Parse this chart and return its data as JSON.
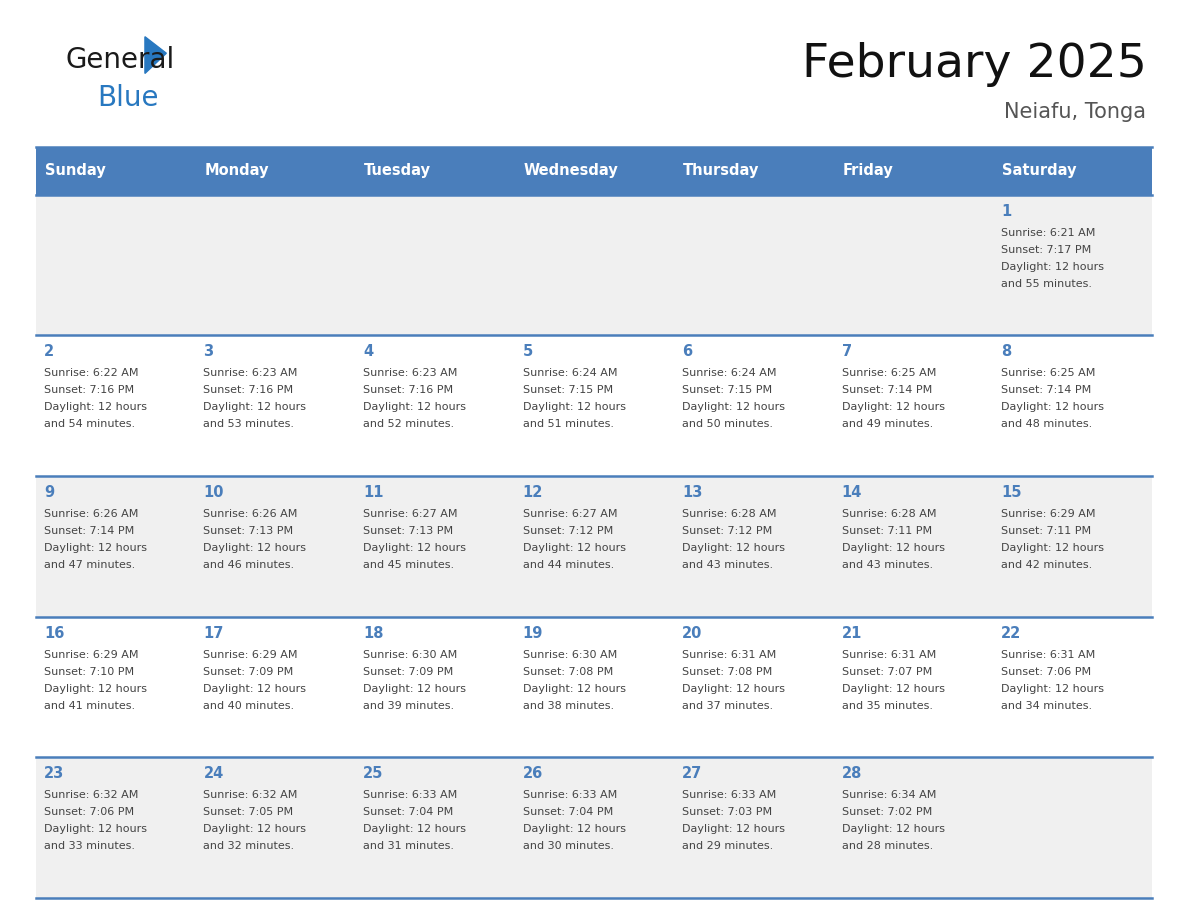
{
  "title": "February 2025",
  "subtitle": "Neiafu, Tonga",
  "header_bg_color": "#4a7ebb",
  "header_text_color": "#FFFFFF",
  "cell_bg_odd": "#f0f0f0",
  "cell_bg_even": "#ffffff",
  "day_number_color": "#4a7ebb",
  "text_color": "#444444",
  "border_color": "#4a7ebb",
  "logo_text_color": "#1a1a1a",
  "logo_blue_color": "#2878c0",
  "days_of_week": [
    "Sunday",
    "Monday",
    "Tuesday",
    "Wednesday",
    "Thursday",
    "Friday",
    "Saturday"
  ],
  "weeks": [
    [
      {
        "day": null,
        "sunrise": null,
        "sunset": null,
        "daylight_line1": null,
        "daylight_line2": null
      },
      {
        "day": null,
        "sunrise": null,
        "sunset": null,
        "daylight_line1": null,
        "daylight_line2": null
      },
      {
        "day": null,
        "sunrise": null,
        "sunset": null,
        "daylight_line1": null,
        "daylight_line2": null
      },
      {
        "day": null,
        "sunrise": null,
        "sunset": null,
        "daylight_line1": null,
        "daylight_line2": null
      },
      {
        "day": null,
        "sunrise": null,
        "sunset": null,
        "daylight_line1": null,
        "daylight_line2": null
      },
      {
        "day": null,
        "sunrise": null,
        "sunset": null,
        "daylight_line1": null,
        "daylight_line2": null
      },
      {
        "day": "1",
        "sunrise": "Sunrise: 6:21 AM",
        "sunset": "Sunset: 7:17 PM",
        "daylight_line1": "Daylight: 12 hours",
        "daylight_line2": "and 55 minutes."
      }
    ],
    [
      {
        "day": "2",
        "sunrise": "Sunrise: 6:22 AM",
        "sunset": "Sunset: 7:16 PM",
        "daylight_line1": "Daylight: 12 hours",
        "daylight_line2": "and 54 minutes."
      },
      {
        "day": "3",
        "sunrise": "Sunrise: 6:23 AM",
        "sunset": "Sunset: 7:16 PM",
        "daylight_line1": "Daylight: 12 hours",
        "daylight_line2": "and 53 minutes."
      },
      {
        "day": "4",
        "sunrise": "Sunrise: 6:23 AM",
        "sunset": "Sunset: 7:16 PM",
        "daylight_line1": "Daylight: 12 hours",
        "daylight_line2": "and 52 minutes."
      },
      {
        "day": "5",
        "sunrise": "Sunrise: 6:24 AM",
        "sunset": "Sunset: 7:15 PM",
        "daylight_line1": "Daylight: 12 hours",
        "daylight_line2": "and 51 minutes."
      },
      {
        "day": "6",
        "sunrise": "Sunrise: 6:24 AM",
        "sunset": "Sunset: 7:15 PM",
        "daylight_line1": "Daylight: 12 hours",
        "daylight_line2": "and 50 minutes."
      },
      {
        "day": "7",
        "sunrise": "Sunrise: 6:25 AM",
        "sunset": "Sunset: 7:14 PM",
        "daylight_line1": "Daylight: 12 hours",
        "daylight_line2": "and 49 minutes."
      },
      {
        "day": "8",
        "sunrise": "Sunrise: 6:25 AM",
        "sunset": "Sunset: 7:14 PM",
        "daylight_line1": "Daylight: 12 hours",
        "daylight_line2": "and 48 minutes."
      }
    ],
    [
      {
        "day": "9",
        "sunrise": "Sunrise: 6:26 AM",
        "sunset": "Sunset: 7:14 PM",
        "daylight_line1": "Daylight: 12 hours",
        "daylight_line2": "and 47 minutes."
      },
      {
        "day": "10",
        "sunrise": "Sunrise: 6:26 AM",
        "sunset": "Sunset: 7:13 PM",
        "daylight_line1": "Daylight: 12 hours",
        "daylight_line2": "and 46 minutes."
      },
      {
        "day": "11",
        "sunrise": "Sunrise: 6:27 AM",
        "sunset": "Sunset: 7:13 PM",
        "daylight_line1": "Daylight: 12 hours",
        "daylight_line2": "and 45 minutes."
      },
      {
        "day": "12",
        "sunrise": "Sunrise: 6:27 AM",
        "sunset": "Sunset: 7:12 PM",
        "daylight_line1": "Daylight: 12 hours",
        "daylight_line2": "and 44 minutes."
      },
      {
        "day": "13",
        "sunrise": "Sunrise: 6:28 AM",
        "sunset": "Sunset: 7:12 PM",
        "daylight_line1": "Daylight: 12 hours",
        "daylight_line2": "and 43 minutes."
      },
      {
        "day": "14",
        "sunrise": "Sunrise: 6:28 AM",
        "sunset": "Sunset: 7:11 PM",
        "daylight_line1": "Daylight: 12 hours",
        "daylight_line2": "and 43 minutes."
      },
      {
        "day": "15",
        "sunrise": "Sunrise: 6:29 AM",
        "sunset": "Sunset: 7:11 PM",
        "daylight_line1": "Daylight: 12 hours",
        "daylight_line2": "and 42 minutes."
      }
    ],
    [
      {
        "day": "16",
        "sunrise": "Sunrise: 6:29 AM",
        "sunset": "Sunset: 7:10 PM",
        "daylight_line1": "Daylight: 12 hours",
        "daylight_line2": "and 41 minutes."
      },
      {
        "day": "17",
        "sunrise": "Sunrise: 6:29 AM",
        "sunset": "Sunset: 7:09 PM",
        "daylight_line1": "Daylight: 12 hours",
        "daylight_line2": "and 40 minutes."
      },
      {
        "day": "18",
        "sunrise": "Sunrise: 6:30 AM",
        "sunset": "Sunset: 7:09 PM",
        "daylight_line1": "Daylight: 12 hours",
        "daylight_line2": "and 39 minutes."
      },
      {
        "day": "19",
        "sunrise": "Sunrise: 6:30 AM",
        "sunset": "Sunset: 7:08 PM",
        "daylight_line1": "Daylight: 12 hours",
        "daylight_line2": "and 38 minutes."
      },
      {
        "day": "20",
        "sunrise": "Sunrise: 6:31 AM",
        "sunset": "Sunset: 7:08 PM",
        "daylight_line1": "Daylight: 12 hours",
        "daylight_line2": "and 37 minutes."
      },
      {
        "day": "21",
        "sunrise": "Sunrise: 6:31 AM",
        "sunset": "Sunset: 7:07 PM",
        "daylight_line1": "Daylight: 12 hours",
        "daylight_line2": "and 35 minutes."
      },
      {
        "day": "22",
        "sunrise": "Sunrise: 6:31 AM",
        "sunset": "Sunset: 7:06 PM",
        "daylight_line1": "Daylight: 12 hours",
        "daylight_line2": "and 34 minutes."
      }
    ],
    [
      {
        "day": "23",
        "sunrise": "Sunrise: 6:32 AM",
        "sunset": "Sunset: 7:06 PM",
        "daylight_line1": "Daylight: 12 hours",
        "daylight_line2": "and 33 minutes."
      },
      {
        "day": "24",
        "sunrise": "Sunrise: 6:32 AM",
        "sunset": "Sunset: 7:05 PM",
        "daylight_line1": "Daylight: 12 hours",
        "daylight_line2": "and 32 minutes."
      },
      {
        "day": "25",
        "sunrise": "Sunrise: 6:33 AM",
        "sunset": "Sunset: 7:04 PM",
        "daylight_line1": "Daylight: 12 hours",
        "daylight_line2": "and 31 minutes."
      },
      {
        "day": "26",
        "sunrise": "Sunrise: 6:33 AM",
        "sunset": "Sunset: 7:04 PM",
        "daylight_line1": "Daylight: 12 hours",
        "daylight_line2": "and 30 minutes."
      },
      {
        "day": "27",
        "sunrise": "Sunrise: 6:33 AM",
        "sunset": "Sunset: 7:03 PM",
        "daylight_line1": "Daylight: 12 hours",
        "daylight_line2": "and 29 minutes."
      },
      {
        "day": "28",
        "sunrise": "Sunrise: 6:34 AM",
        "sunset": "Sunset: 7:02 PM",
        "daylight_line1": "Daylight: 12 hours",
        "daylight_line2": "and 28 minutes."
      },
      {
        "day": null,
        "sunrise": null,
        "sunset": null,
        "daylight_line1": null,
        "daylight_line2": null
      }
    ]
  ]
}
